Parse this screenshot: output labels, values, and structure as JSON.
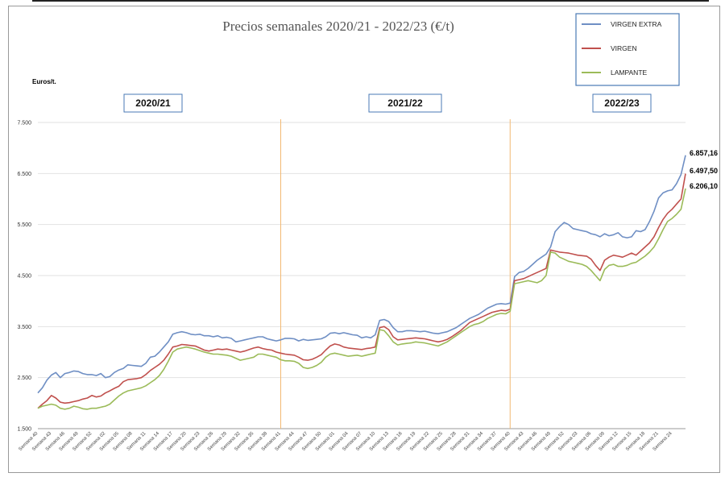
{
  "chart_data": {
    "type": "line",
    "title": "Precios semanales  2020/21 - 2022/23 (€/t)",
    "ylabel": "Euros/t.",
    "ylim": [
      1500,
      7500
    ],
    "y_ticks": [
      "1.500",
      "2.500",
      "3.500",
      "4.500",
      "5.500",
      "6.500",
      "7.500"
    ],
    "y_tick_values": [
      1500,
      2500,
      3500,
      4500,
      5500,
      6500,
      7500
    ],
    "grid": true,
    "legend_position": "top-right",
    "seasons": [
      {
        "label": "2020/21"
      },
      {
        "label": "2021/22"
      },
      {
        "label": "2022/23"
      }
    ],
    "season_divider_weeks": [
      "Semana 41",
      "Semana 40"
    ],
    "x_tick_labels": [
      "Semana 40",
      "Semana 43",
      "Semana 46",
      "Semana 49",
      "Semana 52",
      "Semana 02",
      "Semana 05",
      "Semana 08",
      "Semana 11",
      "Semana 14",
      "Semana 17",
      "Semana 20",
      "Semana 23",
      "Semana 26",
      "Semana 29",
      "Semana 32",
      "Semana 35",
      "Semana 38",
      "Semana 41",
      "Semana 44",
      "Semana 47",
      "Semana 50",
      "Semana 01",
      "Semana 04",
      "Semana 07",
      "Semana 10",
      "Semana 13",
      "Semana 16",
      "Semana 19",
      "Semana 22",
      "Semana 25",
      "Semana 28",
      "Semana 31",
      "Semana 34",
      "Semana 37",
      "Semana 40",
      "Semana 43",
      "Semana 46",
      "Semana 49",
      "Semana 52",
      "Semana 03",
      "Semana 06",
      "Semana 09",
      "Semana 12",
      "Semana 15",
      "Semana 18",
      "Semana 21",
      "Semana 24"
    ],
    "x_tick_index": [
      0,
      3,
      6,
      9,
      12,
      15,
      18,
      21,
      24,
      27,
      30,
      33,
      36,
      39,
      42,
      45,
      48,
      51,
      54,
      57,
      60,
      63,
      66,
      69,
      72,
      75,
      78,
      81,
      84,
      87,
      90,
      93,
      96,
      99,
      102,
      105,
      108,
      111,
      114,
      117,
      120,
      123,
      126,
      129,
      132,
      135,
      138,
      141
    ],
    "divider_index": [
      54,
      105
    ],
    "series": [
      {
        "name": "VIRGEN EXTRA",
        "color": "#6f8fc4",
        "end_label": "6.857,16",
        "values": [
          2200,
          2300,
          2450,
          2550,
          2600,
          2500,
          2580,
          2600,
          2630,
          2620,
          2580,
          2560,
          2560,
          2540,
          2580,
          2500,
          2520,
          2600,
          2650,
          2680,
          2750,
          2740,
          2730,
          2720,
          2780,
          2900,
          2920,
          3000,
          3100,
          3200,
          3350,
          3380,
          3400,
          3380,
          3350,
          3340,
          3350,
          3320,
          3320,
          3300,
          3320,
          3280,
          3290,
          3270,
          3200,
          3220,
          3240,
          3260,
          3280,
          3300,
          3300,
          3260,
          3240,
          3220,
          3240,
          3270,
          3270,
          3260,
          3220,
          3250,
          3230,
          3240,
          3250,
          3260,
          3300,
          3370,
          3380,
          3360,
          3380,
          3360,
          3340,
          3330,
          3280,
          3300,
          3280,
          3340,
          3620,
          3640,
          3600,
          3480,
          3400,
          3400,
          3420,
          3420,
          3410,
          3400,
          3410,
          3390,
          3370,
          3360,
          3380,
          3400,
          3440,
          3480,
          3540,
          3600,
          3660,
          3700,
          3740,
          3800,
          3860,
          3900,
          3940,
          3950,
          3940,
          3960,
          4480,
          4560,
          4580,
          4640,
          4720,
          4800,
          4860,
          4920,
          5060,
          5360,
          5460,
          5540,
          5500,
          5420,
          5400,
          5380,
          5360,
          5320,
          5300,
          5260,
          5320,
          5280,
          5300,
          5340,
          5260,
          5240,
          5260,
          5380,
          5360,
          5400,
          5560,
          5760,
          6020,
          6120,
          6160,
          6180,
          6300,
          6480,
          6857
        ]
      },
      {
        "name": "VIRGEN",
        "color": "#c0504d",
        "end_label": "6.497,50",
        "values": [
          1900,
          1980,
          2050,
          2150,
          2100,
          2020,
          2000,
          2010,
          2030,
          2050,
          2080,
          2100,
          2150,
          2120,
          2140,
          2200,
          2240,
          2290,
          2330,
          2420,
          2460,
          2470,
          2480,
          2500,
          2560,
          2640,
          2700,
          2760,
          2840,
          2960,
          3100,
          3120,
          3150,
          3140,
          3130,
          3120,
          3080,
          3040,
          3020,
          3040,
          3060,
          3050,
          3060,
          3040,
          3020,
          3000,
          3020,
          3050,
          3080,
          3100,
          3070,
          3050,
          3040,
          3000,
          2980,
          2960,
          2950,
          2940,
          2900,
          2850,
          2840,
          2860,
          2900,
          2950,
          3040,
          3120,
          3160,
          3140,
          3100,
          3080,
          3070,
          3060,
          3050,
          3070,
          3080,
          3100,
          3480,
          3500,
          3440,
          3300,
          3240,
          3250,
          3260,
          3270,
          3280,
          3270,
          3260,
          3240,
          3220,
          3200,
          3220,
          3250,
          3300,
          3360,
          3420,
          3500,
          3580,
          3620,
          3660,
          3700,
          3740,
          3780,
          3800,
          3820,
          3810,
          3840,
          4400,
          4420,
          4440,
          4480,
          4520,
          4560,
          4600,
          4640,
          5000,
          4980,
          4960,
          4950,
          4940,
          4920,
          4900,
          4890,
          4880,
          4820,
          4700,
          4600,
          4800,
          4860,
          4900,
          4880,
          4860,
          4900,
          4940,
          4900,
          4980,
          5060,
          5140,
          5260,
          5440,
          5600,
          5720,
          5800,
          5900,
          6000,
          6497
        ]
      },
      {
        "name": "LAMPANTE",
        "color": "#9bbb59",
        "end_label": "6.206,10",
        "values": [
          1900,
          1940,
          1960,
          1980,
          1960,
          1900,
          1880,
          1900,
          1940,
          1920,
          1890,
          1880,
          1900,
          1900,
          1920,
          1940,
          1980,
          2060,
          2140,
          2200,
          2240,
          2260,
          2280,
          2300,
          2340,
          2400,
          2460,
          2540,
          2660,
          2820,
          3000,
          3060,
          3080,
          3100,
          3080,
          3060,
          3030,
          3000,
          2980,
          2960,
          2960,
          2950,
          2940,
          2920,
          2880,
          2840,
          2860,
          2880,
          2900,
          2960,
          2960,
          2940,
          2920,
          2900,
          2850,
          2830,
          2830,
          2820,
          2780,
          2700,
          2680,
          2700,
          2740,
          2800,
          2900,
          2960,
          2980,
          2960,
          2940,
          2920,
          2930,
          2940,
          2920,
          2940,
          2960,
          2980,
          3440,
          3420,
          3320,
          3200,
          3140,
          3160,
          3170,
          3180,
          3200,
          3190,
          3180,
          3160,
          3140,
          3120,
          3160,
          3200,
          3260,
          3320,
          3380,
          3440,
          3500,
          3540,
          3560,
          3600,
          3660,
          3700,
          3740,
          3760,
          3750,
          3800,
          4340,
          4360,
          4380,
          4400,
          4380,
          4360,
          4400,
          4500,
          4960,
          4940,
          4860,
          4820,
          4780,
          4760,
          4740,
          4720,
          4680,
          4600,
          4500,
          4400,
          4620,
          4700,
          4720,
          4680,
          4680,
          4700,
          4740,
          4760,
          4820,
          4880,
          4960,
          5060,
          5220,
          5400,
          5560,
          5620,
          5700,
          5800,
          6206
        ]
      }
    ]
  }
}
